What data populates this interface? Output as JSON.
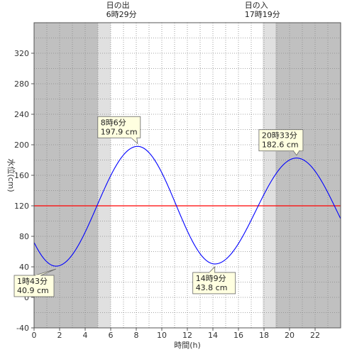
{
  "chart_data": {
    "type": "line",
    "xlabel": "時間(h)",
    "ylabel": "水位(cm)",
    "xlim": [
      0,
      24
    ],
    "ylim": [
      -40,
      360
    ],
    "x_ticks": [
      0,
      2,
      4,
      6,
      8,
      10,
      12,
      14,
      16,
      18,
      20,
      22
    ],
    "y_ticks": [
      -40,
      0,
      40,
      80,
      120,
      160,
      200,
      240,
      280,
      320
    ],
    "grid": true,
    "reference_line": {
      "value": 120,
      "color": "#ff0000"
    },
    "colors": {
      "series": "#0000ff",
      "reference": "#ff0000",
      "night": "#c0c0c0",
      "twilight": "#e0e0e0",
      "callout_fill": "#ffffe0"
    },
    "sunrise": {
      "title": "日の出",
      "time": "6時29分",
      "hour": 6.48
    },
    "sunset": {
      "title": "日の入",
      "time": "17時19分",
      "hour": 17.32
    },
    "shading": {
      "night_before": [
        0,
        5.0
      ],
      "twilight_morning": [
        5.0,
        6.0
      ],
      "twilight_evening": [
        17.9,
        18.9
      ],
      "night_after": [
        18.9,
        24
      ]
    },
    "extremes": [
      {
        "t": 1.717,
        "v": 40.9,
        "time_label": "1時43分",
        "value_label": "40.9 cm"
      },
      {
        "t": 8.1,
        "v": 197.9,
        "time_label": "8時6分",
        "value_label": "197.9 cm"
      },
      {
        "t": 14.15,
        "v": 43.8,
        "time_label": "14時9分",
        "value_label": "43.8 cm"
      },
      {
        "t": 20.55,
        "v": 182.6,
        "time_label": "20時33分",
        "value_label": "182.6 cm"
      }
    ],
    "start_value": 72,
    "end_value": 103
  }
}
